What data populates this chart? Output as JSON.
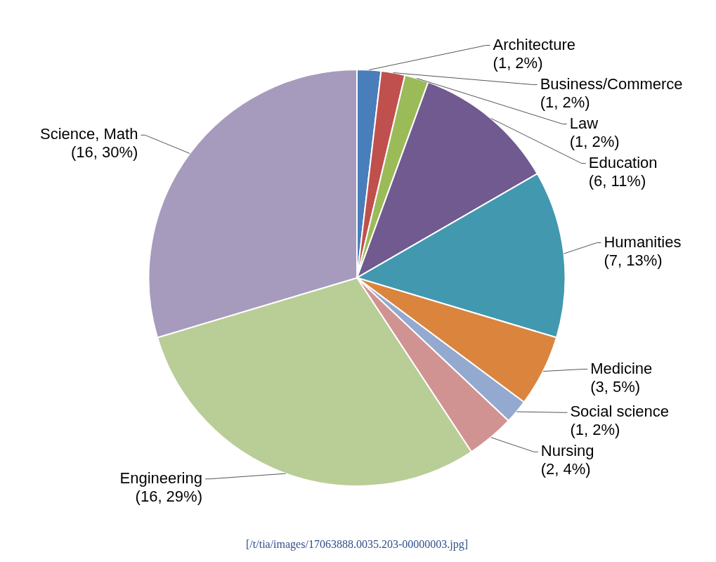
{
  "chart_data": {
    "type": "pie",
    "categories": [
      "Architecture",
      "Business/Commerce",
      "Law",
      "Education",
      "Humanities",
      "Medicine",
      "Social science",
      "Nursing",
      "Engineering",
      "Science, Math"
    ],
    "values": [
      1,
      1,
      1,
      6,
      7,
      3,
      1,
      2,
      16,
      16
    ],
    "value_labels": [
      "(1, 2%)",
      "(1, 2%)",
      "(1, 2%)",
      "(6, 11%)",
      "(7, 13%)",
      "(3, 5%)",
      "(1, 2%)",
      "(2, 4%)",
      "(16, 29%)",
      "(16, 30%)"
    ],
    "colors": [
      "#4a7ebb",
      "#c0504d",
      "#9bbb59",
      "#705a8f",
      "#4198af",
      "#db843d",
      "#93a9cf",
      "#d19392",
      "#b9cd96",
      "#a69abd"
    ],
    "annotations": [
      "[/t/tia/images/17063888.0035.203-00000003.jpg]"
    ]
  }
}
